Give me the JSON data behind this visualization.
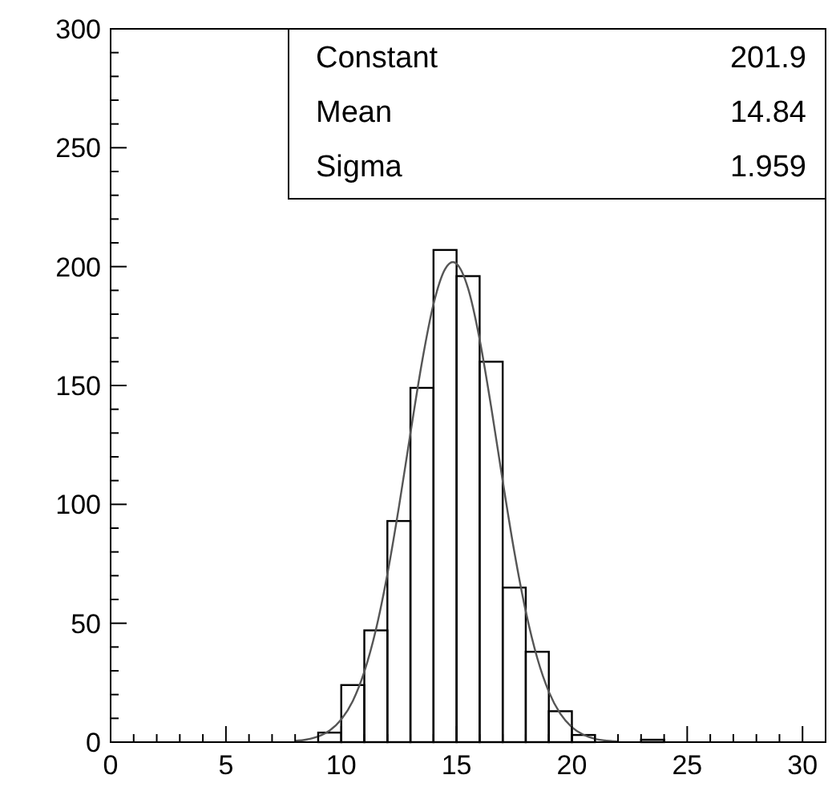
{
  "chart_data": {
    "type": "histogram",
    "xlim": [
      0,
      31
    ],
    "ylim": [
      0,
      300
    ],
    "xticks": [
      0,
      {
        "value": 1,
        "label": null
      },
      {
        "value": 2,
        "label": null
      },
      {
        "value": 3,
        "label": null
      },
      {
        "value": 4,
        "label": null
      },
      5,
      {
        "value": 6,
        "label": null
      },
      {
        "value": 7,
        "label": null
      },
      {
        "value": 8,
        "label": null
      },
      {
        "value": 9,
        "label": null
      },
      10,
      {
        "value": 11,
        "label": null
      },
      {
        "value": 12,
        "label": null
      },
      {
        "value": 13,
        "label": null
      },
      {
        "value": 14,
        "label": null
      },
      15,
      {
        "value": 16,
        "label": null
      },
      {
        "value": 17,
        "label": null
      },
      {
        "value": 18,
        "label": null
      },
      {
        "value": 19,
        "label": null
      },
      20,
      {
        "value": 21,
        "label": null
      },
      {
        "value": 22,
        "label": null
      },
      {
        "value": 23,
        "label": null
      },
      {
        "value": 24,
        "label": null
      },
      25,
      {
        "value": 26,
        "label": null
      },
      {
        "value": 27,
        "label": null
      },
      {
        "value": 28,
        "label": null
      },
      {
        "value": 29,
        "label": null
      },
      30
    ],
    "yticks": [
      0,
      {
        "value": 10,
        "label": null
      },
      {
        "value": 20,
        "label": null
      },
      {
        "value": 30,
        "label": null
      },
      {
        "value": 40,
        "label": null
      },
      50,
      {
        "value": 60,
        "label": null
      },
      {
        "value": 70,
        "label": null
      },
      {
        "value": 80,
        "label": null
      },
      {
        "value": 90,
        "label": null
      },
      100,
      {
        "value": 110,
        "label": null
      },
      {
        "value": 120,
        "label": null
      },
      {
        "value": 130,
        "label": null
      },
      {
        "value": 140,
        "label": null
      },
      150,
      {
        "value": 160,
        "label": null
      },
      {
        "value": 170,
        "label": null
      },
      {
        "value": 180,
        "label": null
      },
      {
        "value": 190,
        "label": null
      },
      200,
      {
        "value": 210,
        "label": null
      },
      {
        "value": 220,
        "label": null
      },
      {
        "value": 230,
        "label": null
      },
      {
        "value": 240,
        "label": null
      },
      250,
      {
        "value": 260,
        "label": null
      },
      {
        "value": 270,
        "label": null
      },
      {
        "value": 280,
        "label": null
      },
      {
        "value": 290,
        "label": null
      },
      300
    ],
    "annotations": [
      "Constant",
      "201.9",
      "Mean",
      "14.84",
      "Sigma",
      "1.959"
    ],
    "series": [
      {
        "color": "#000000",
        "bins": [
          9,
          10,
          11,
          12,
          13,
          14,
          15,
          16,
          17,
          18,
          19,
          20,
          21,
          22,
          23,
          24
        ],
        "values": [
          4,
          24,
          47,
          93,
          149,
          207,
          196,
          160,
          65,
          38,
          13,
          3,
          0,
          0,
          1
        ]
      },
      {
        "type": "line",
        "color": "#555555",
        "x": [
          8,
          8.5,
          9,
          9.5,
          10,
          10.5,
          11,
          11.5,
          12,
          12.5,
          13,
          13.5,
          14,
          14.5,
          14.84,
          15,
          15.5,
          16,
          16.5,
          17,
          17.5,
          18,
          18.5,
          19,
          19.5,
          20,
          20.5,
          21,
          21.5,
          22
        ],
        "values": [
          0.5,
          1.1,
          2.4,
          4.9,
          9.5,
          17.3,
          29.6,
          47.2,
          70.6,
          98.9,
          129.9,
          159.8,
          184.2,
          198.9,
          201.9,
          201.2,
          190.8,
          169.4,
          141,
          109.9,
          80.3,
          55,
          35.3,
          21.2,
          11.9,
          6.3,
          3.1,
          1.4,
          0.6,
          0.3
        ]
      }
    ]
  }
}
